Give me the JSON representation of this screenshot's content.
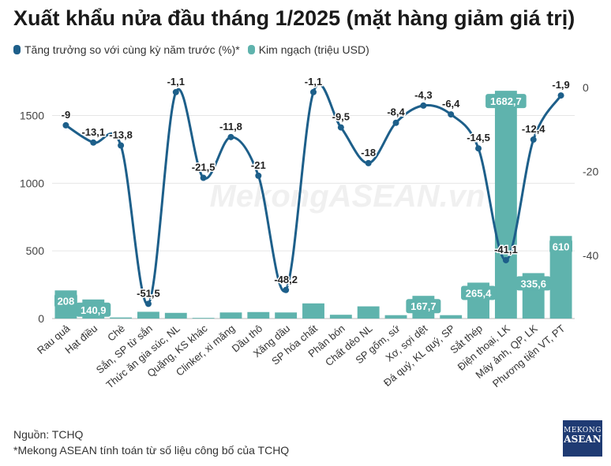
{
  "title": "Xuất khẩu nửa đầu tháng 1/2025 (mặt hàng giảm giá trị)",
  "legend": {
    "growth_label": "Tăng trưởng so với cùng kỳ năm trước (%)*",
    "value_label": "Kim ngạch (triệu USD)"
  },
  "colors": {
    "line": "#1d5f8a",
    "bar": "#5fb3ad",
    "label_bg": "#5fb3ad"
  },
  "watermark": "MekongASEAN.vn",
  "source": "Nguồn: TCHQ",
  "note": "*Mekong ASEAN tính toán từ số liệu công bố của TCHQ",
  "logo": {
    "line1": "MEKONG",
    "line2": "ASEAN"
  },
  "chart_data": {
    "type": "bar",
    "categories": [
      "Rau quả",
      "Hạt điều",
      "Chè",
      "Sắn, SP từ sắn",
      "Thức ăn gia súc, NL",
      "Quặng, KS khác",
      "Clinker, xi măng",
      "Dầu thô",
      "Xăng dầu",
      "SP hóa chất",
      "Phân bón",
      "Chất dẻo NL",
      "SP gốm, sứ",
      "Xơ, sợi dệt",
      "Đá quý, KL quý, SP",
      "Sắt thép",
      "Điện thoại, LK",
      "Máy ảnh, QP, LK",
      "Phương tiện VT, PT"
    ],
    "series": [
      {
        "name": "Kim ngạch (triệu USD)",
        "axis": "left",
        "values": [
          208,
          140.9,
          8,
          50,
          42,
          5,
          45,
          48,
          45,
          112,
          28,
          90,
          25,
          167.7,
          25,
          265.4,
          1682.7,
          335.6,
          610
        ],
        "data_labels": [
          "208",
          "140,9",
          "",
          "",
          "",
          "",
          "",
          "",
          "",
          "",
          "",
          "",
          "",
          "167,7",
          "",
          "265,4",
          "1682,7",
          "335,6",
          "610"
        ]
      },
      {
        "name": "Tăng trưởng so với cùng kỳ năm trước (%)*",
        "axis": "right",
        "type": "line",
        "values": [
          -9,
          -13.1,
          -13.8,
          -51.5,
          -1.1,
          -21.5,
          -11.8,
          -21,
          -48.2,
          -1.1,
          -9.5,
          -18,
          -8.4,
          -4.3,
          -6.4,
          -14.5,
          -41.1,
          -12.4,
          -1.9
        ],
        "data_labels": [
          "-9",
          "-13,1",
          "-13,8",
          "-51,5",
          "-1,1",
          "-21,5",
          "-11,8",
          "-21",
          "-48,2",
          "-1,1",
          "-9,5",
          "-18",
          "-8,4",
          "-4,3",
          "-6,4",
          "-14,5",
          "-41,1",
          "-12,4",
          "-1,9"
        ]
      }
    ],
    "y_left": {
      "ticks": [
        "0",
        "500",
        "1000",
        "1500"
      ],
      "range": [
        0,
        1800
      ]
    },
    "y_right": {
      "ticks": [
        "0",
        "-20",
        "-40"
      ],
      "range": [
        -55,
        3
      ]
    },
    "grid": true,
    "legend_position": "top-left"
  }
}
